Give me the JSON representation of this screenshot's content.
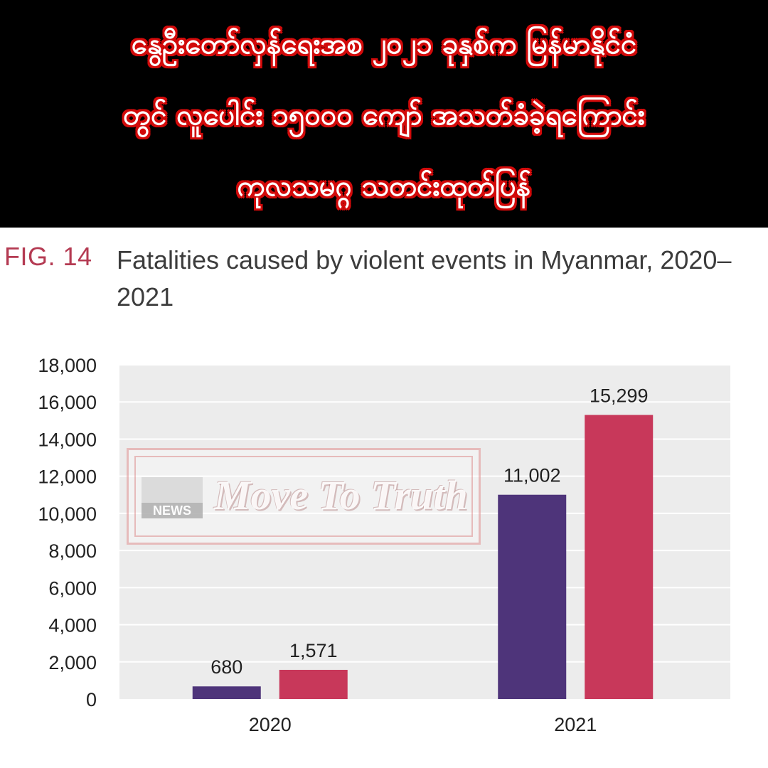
{
  "headline": {
    "lines": [
      "နွေဦးတော်လှန်ရေးအစ ၂၀၂၁ ခုနှစ်က မြန်မာနိုင်ငံ",
      "တွင် လူပေါင်း ၁၅၀၀၀ ကျော် အသတ်ခံခဲ့ရကြောင်း",
      "ကုလသမဂ္ဂ သတင်းထုတ်ပြန်"
    ]
  },
  "figure": {
    "label": "FIG. 14",
    "title": "Fatalities caused by violent events in Myanmar, 2020–2021"
  },
  "watermark": {
    "logo_text": "NEWS",
    "brand": "Move To Truth"
  },
  "colors": {
    "series_a": "#4e347a",
    "series_b": "#c8385a",
    "plot_bg": "#ececec",
    "headline_outline": "#d20a0a",
    "fig_label": "#b43a52"
  },
  "chart_data": {
    "type": "bar",
    "categories": [
      "2020",
      "2021"
    ],
    "series": [
      {
        "values": [
          680,
          11002
        ],
        "labels": [
          "680",
          "11,002"
        ]
      },
      {
        "values": [
          1571,
          15299
        ],
        "labels": [
          "1,571",
          "15,299"
        ]
      }
    ],
    "ylim": [
      0,
      18000
    ],
    "yticks": [
      0,
      2000,
      4000,
      6000,
      8000,
      10000,
      12000,
      14000,
      16000,
      18000
    ],
    "ytick_labels": [
      "0",
      "2,000",
      "4,000",
      "6,000",
      "8,000",
      "10,000",
      "12,000",
      "14,000",
      "16,000",
      "18,000"
    ],
    "grid": true,
    "title": "Fatalities caused by violent events in Myanmar, 2020–2021",
    "xlabel": "",
    "ylabel": ""
  }
}
